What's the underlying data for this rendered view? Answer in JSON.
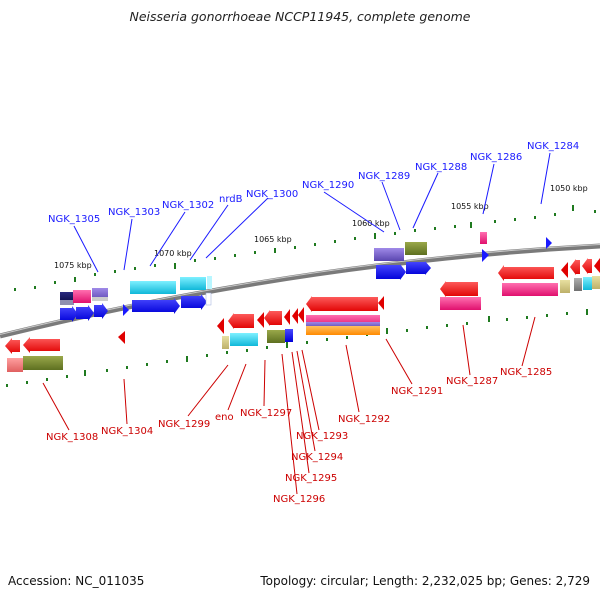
{
  "title": "Neisseria gonorrhoeae NCCP11945, complete genome",
  "footer": {
    "accession": "Accession: NC_011035",
    "summary": "Topology: circular; Length: 2,232,025 bp; Genes: 2,729"
  },
  "scale_labels": [
    {
      "id": "kbp-1075",
      "text": "1075 kbp"
    },
    {
      "id": "kbp-1070",
      "text": "1070 kbp"
    },
    {
      "id": "kbp-1065",
      "text": "1065 kbp"
    },
    {
      "id": "kbp-1060",
      "text": "1060 kbp"
    },
    {
      "id": "kbp-1055",
      "text": "1055 kbp"
    },
    {
      "id": "kbp-1050",
      "text": "1050 kbp"
    }
  ],
  "top_genes": [
    "NGK_1305",
    "NGK_1303",
    "NGK_1302",
    "nrdB",
    "NGK_1300",
    "NGK_1290",
    "NGK_1289",
    "NGK_1288",
    "NGK_1286",
    "NGK_1284"
  ],
  "bottom_genes": [
    "NGK_1308",
    "NGK_1304",
    "NGK_1299",
    "eno",
    "NGK_1297",
    "NGK_1293",
    "NGK_1294",
    "NGK_1295",
    "NGK_1296",
    "NGK_1292",
    "NGK_1291",
    "NGK_1287",
    "NGK_1285"
  ],
  "colors": {
    "backbone": "#7a7a7a",
    "tick": "#1f7a1f",
    "top_label": "#1a1aff",
    "bottom_label": "#cc0000"
  }
}
